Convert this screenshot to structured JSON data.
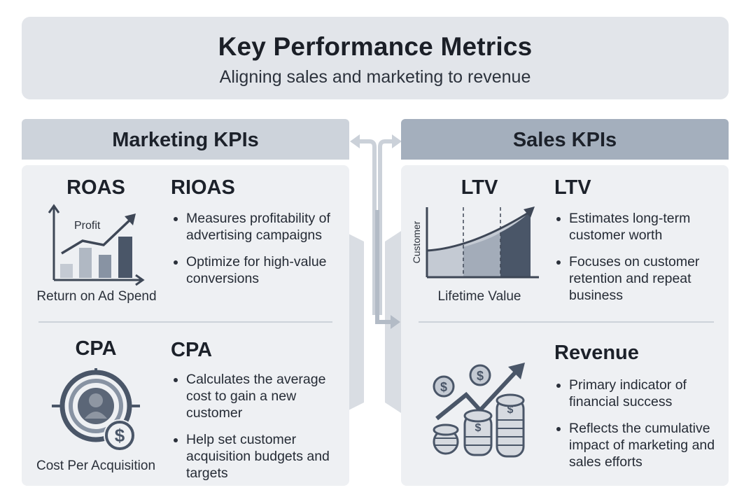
{
  "header": {
    "title": "Key Performance Metrics",
    "subtitle": "Aligning sales and marketing to revenue"
  },
  "marketing": {
    "heading": "Marketing KPIs",
    "roas": {
      "label": "ROAS",
      "icon": "bar-chart-growth-icon",
      "icon_text": "Profit",
      "caption": "Return on Ad Spend",
      "title": "RIOAS",
      "bullets": [
        "Measures profitability of advertising campaigns",
        "Optimize for high-value conversions"
      ]
    },
    "cpa": {
      "label": "CPA",
      "icon": "target-customer-dollar-icon",
      "caption": "Cost Per Acquisition",
      "title": "CPA",
      "bullets": [
        "Calculates the average cost to gain a new customer",
        "Help set customer acquisition budgets and targets"
      ]
    }
  },
  "sales": {
    "heading": "Sales KPIs",
    "ltv": {
      "label": "LTV",
      "icon": "lifetime-value-curve-icon",
      "axis_label": "Customer",
      "caption": "Lifetime Value",
      "title": "LTV",
      "bullets": [
        "Estimates long-term customer worth",
        "Focuses on customer retention and repeat business"
      ]
    },
    "revenue": {
      "icon": "coin-stacks-growth-icon",
      "title": "Revenue",
      "bullets": [
        "Primary indicator of financial success",
        "Reflects the cumulative impact of marketing and sales efforts"
      ]
    }
  },
  "colors": {
    "header_bg": "#e2e5ea",
    "marketing_head_bg": "#cdd3db",
    "sales_head_bg": "#a4afbd",
    "panel_bg": "#eef0f3",
    "icon_dark": "#4a5668",
    "icon_mid": "#8893a3",
    "icon_light": "#c4cad3"
  }
}
